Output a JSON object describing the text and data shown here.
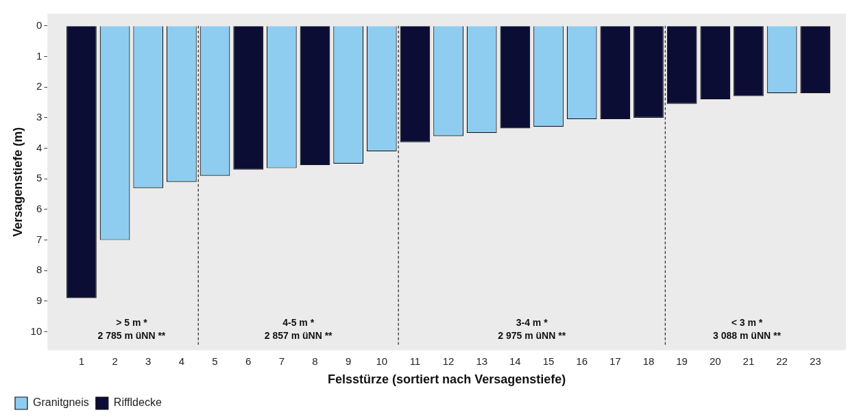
{
  "chart_data": {
    "type": "bar",
    "xlabel": "Felsstürze (sortiert nach Versagenstiefe)",
    "ylabel": "Versagenstiefe (m)",
    "x": [
      1,
      2,
      3,
      4,
      5,
      6,
      7,
      8,
      9,
      10,
      11,
      12,
      13,
      14,
      15,
      16,
      17,
      18,
      19,
      20,
      21,
      22,
      23
    ],
    "series": [
      {
        "name": "Granitgneis",
        "color": "#8ecdf0",
        "values": [
          null,
          7.0,
          5.3,
          5.1,
          4.9,
          null,
          4.65,
          null,
          4.5,
          4.1,
          null,
          3.6,
          3.5,
          null,
          3.3,
          3.05,
          null,
          null,
          null,
          null,
          null,
          2.2,
          null
        ]
      },
      {
        "name": "Riffldecke",
        "color": "#0b0d35",
        "values": [
          8.9,
          null,
          null,
          null,
          null,
          4.7,
          null,
          4.55,
          null,
          null,
          3.8,
          null,
          null,
          3.35,
          null,
          null,
          3.05,
          3.0,
          2.55,
          2.4,
          2.3,
          null,
          2.2
        ]
      }
    ],
    "xlim": [
      0.5,
      23.4
    ],
    "xticks": [
      1,
      2,
      3,
      4,
      5,
      6,
      7,
      8,
      9,
      10,
      11,
      12,
      13,
      14,
      15,
      16,
      17,
      18,
      19,
      20,
      21,
      22,
      23
    ],
    "ylim": [
      10.6,
      -0.4
    ],
    "yticks": [
      0,
      1,
      2,
      3,
      4,
      5,
      6,
      7,
      8,
      9,
      10
    ],
    "ref_lines": [
      {
        "axis": "x",
        "value": 4.5,
        "line_style": "dashed"
      },
      {
        "axis": "x",
        "value": 10.5,
        "line_style": "dashed"
      },
      {
        "axis": "x",
        "value": 18.5,
        "line_style": "dashed"
      }
    ],
    "annotations": [
      "> 5 m *\n2 785 m üNN **",
      "4-5 m *\n2 857 m üNN **",
      "3-4 m *\n2 975 m üNN **",
      "< 3 m *\n3 088 m üNN **"
    ],
    "grid": false,
    "legend": "bottom left"
  }
}
